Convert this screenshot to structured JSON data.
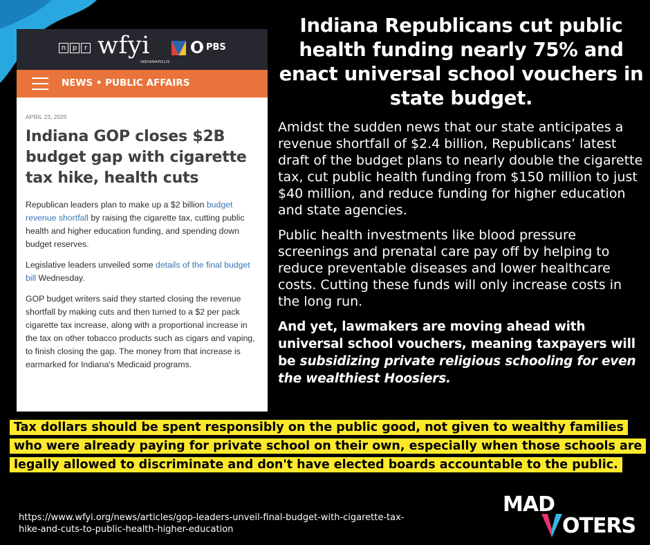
{
  "article": {
    "npr_letters": [
      "n",
      "p",
      "r"
    ],
    "station_name": "wfyi",
    "station_city": "INDIANAPOLIS",
    "pbs_label": "PBS",
    "section": "NEWS • PUBLIC AFFAIRS",
    "date": "APRIL 23, 2025",
    "headline": "Indiana GOP closes $2B budget gap with cigarette tax hike, health cuts",
    "para1": {
      "before": "Republican leaders plan to make up a $2 billion ",
      "link": "budget revenue shortfall",
      "after": " by raising the cigarette tax, cutting public health and higher education funding, and spending down budget reserves."
    },
    "para2": {
      "before": "Legislative leaders unveiled some ",
      "link": "details of the final budget bill",
      "after": " Wednesday."
    },
    "para3": "GOP budget writers said they started closing the revenue shortfall by making cuts and then turned to a $2 per pack cigarette tax increase, along with a proportional increase in the tax on other tobacco products such as cigars and vaping, to finish closing the gap. The money from that increase is earmarked for Indiana's Medicaid programs."
  },
  "main": {
    "headline": "Indiana Republicans cut public health funding nearly 75% and enact universal school vouchers in state budget.",
    "body1": "Amidst the sudden news that our state anticipates a revenue shortfall of $2.4 billion, Republicans’ latest draft of the budget plans to nearly double the cigarette tax, cut public health funding from $150 million to just $40 million, and reduce funding for higher education and state agencies.",
    "body2": "Public health investments like blood pressure screenings and prenatal care pay off by helping to reduce preventable diseases and lower healthcare costs. Cutting these funds will only increase costs in the long run.",
    "body3_plain": "And yet, lawmakers are moving ahead with universal school vouchers, meaning taxpayers will be ",
    "body3_italic": "subsidizing private religious schooling for even the wealthiest Hoosiers."
  },
  "callout": "Tax dollars should be spent responsibly on the public good, not given to wealthy families who were already paying for private school on their own, especially when those schools are legally allowed to discriminate and don't have elected boards accountable to the public.",
  "source_url": "https://www.wfyi.org/news/articles/gop-leaders-unveil-final-budget-with-cigarette-tax-hike-and-cuts-to-public-health-higher-education",
  "logo": {
    "line1": "MAD",
    "line2": "OTERS"
  },
  "colors": {
    "background": "#000000",
    "callout_highlight": "#fde92c",
    "wfyi_nav": "#e9743b",
    "wfyi_topbar": "#26272f",
    "link": "#3a74b6",
    "logo_pink": "#e8336f",
    "logo_blue": "#3ab4e6",
    "wave_blue": "#29a8e0"
  }
}
